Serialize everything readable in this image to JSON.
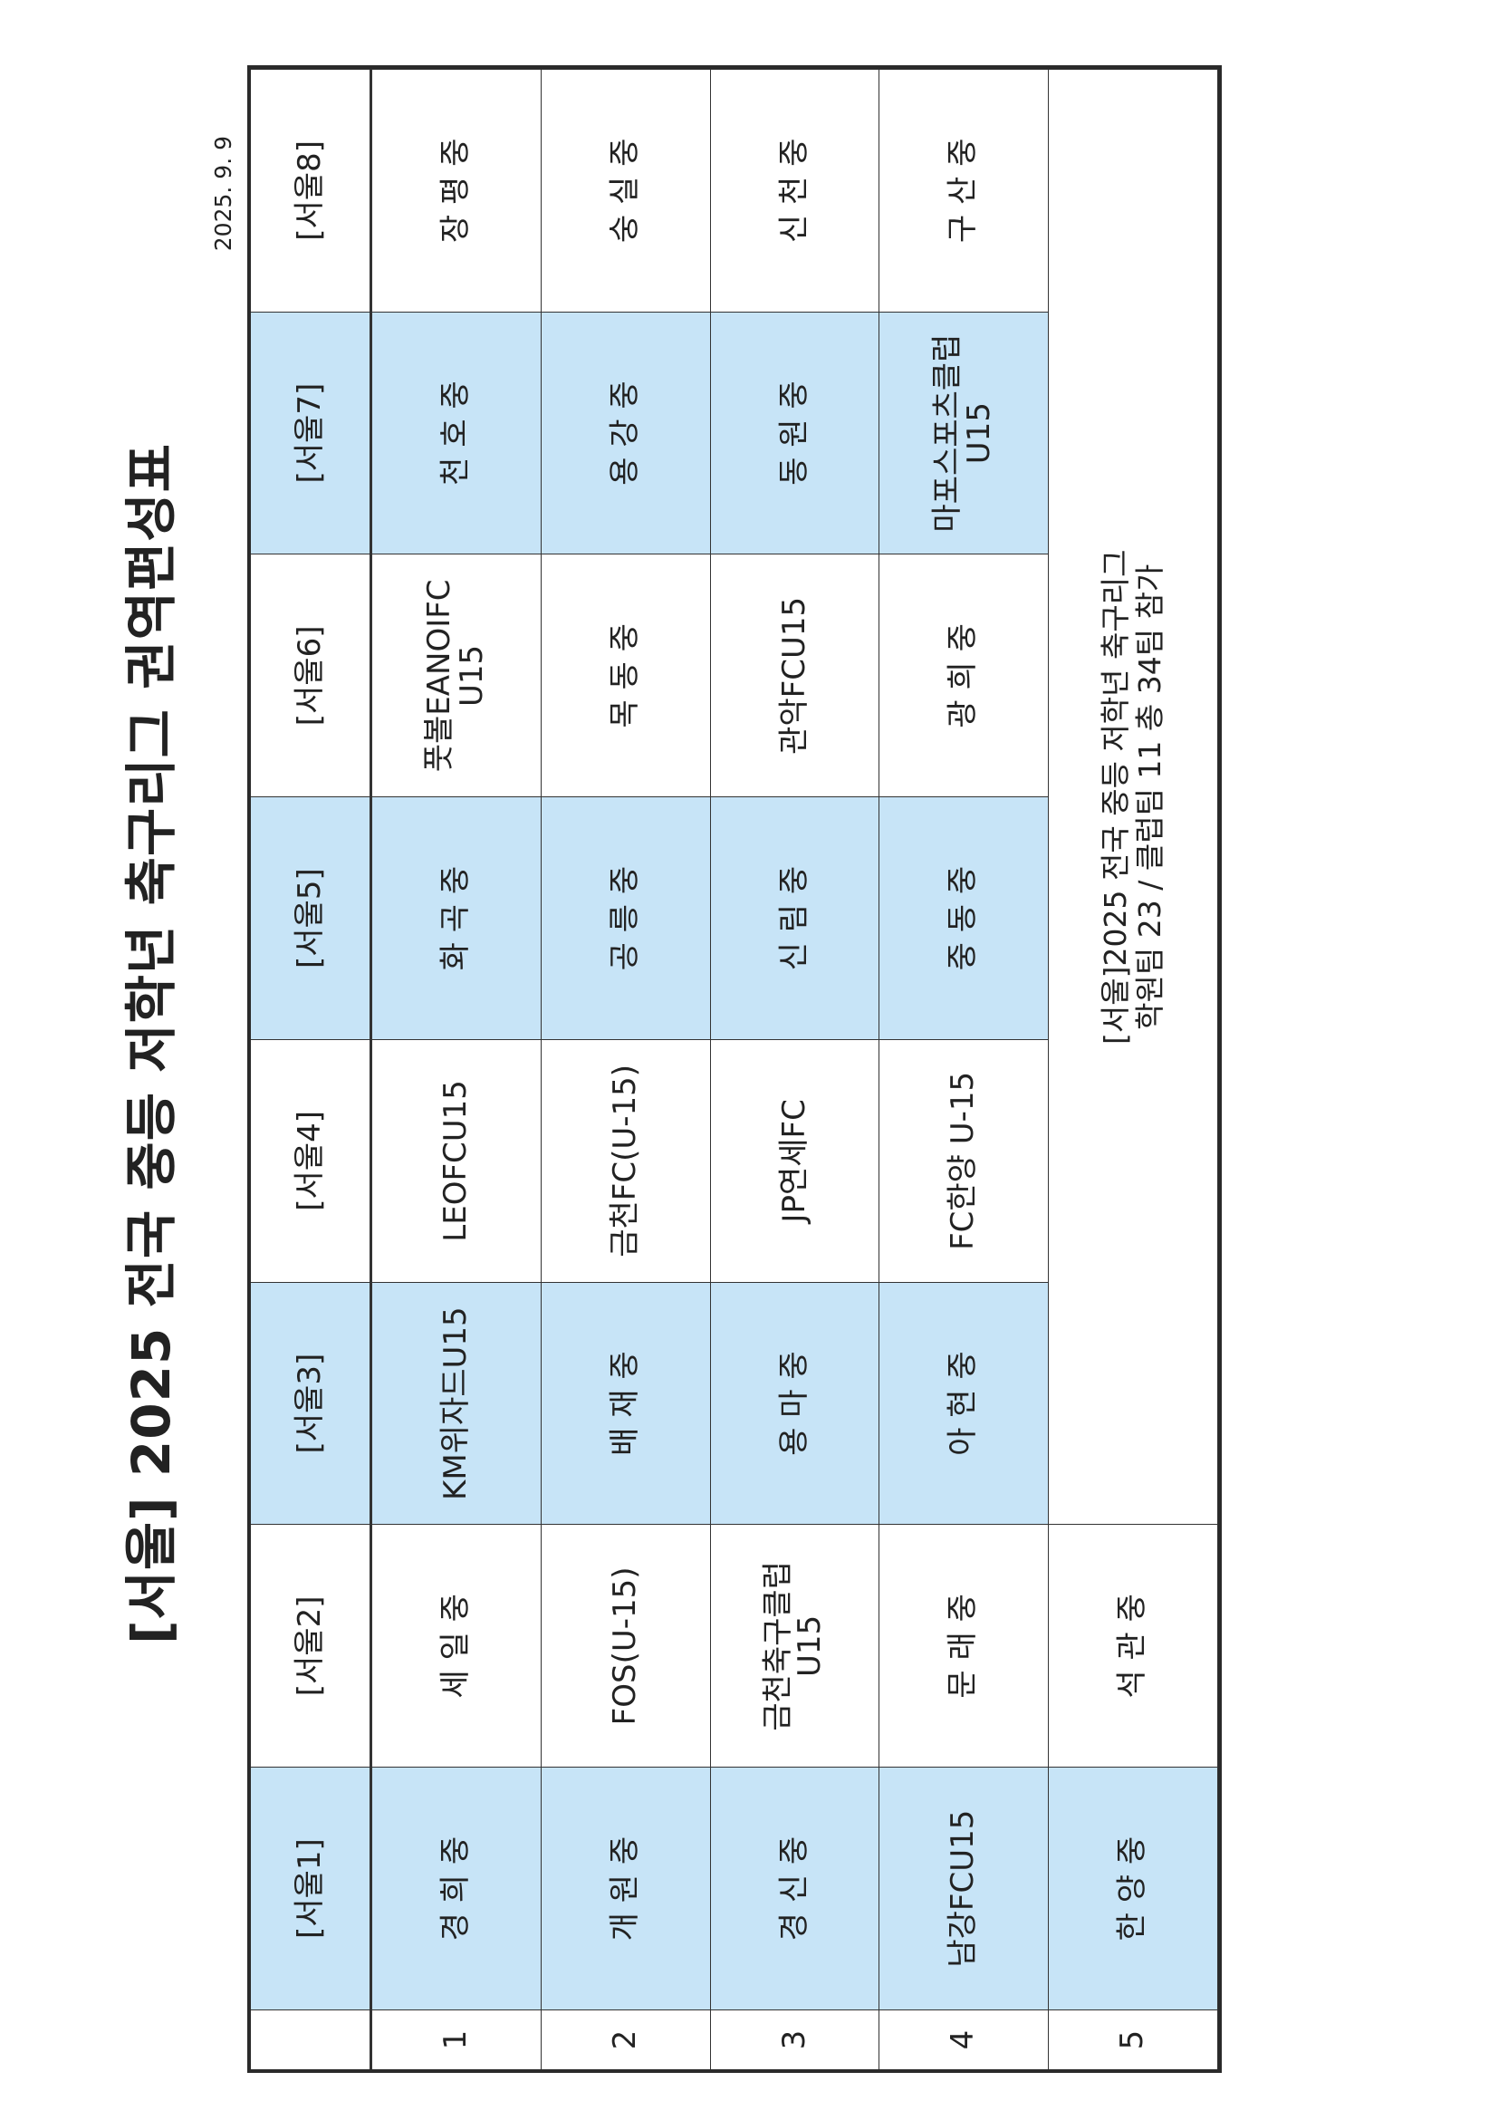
{
  "title": "[서울] 2025 전국 중등 저학년 축구리그 권역편성표",
  "date": "2025. 9. 9",
  "colors": {
    "group_highlight": "#c7e4f7",
    "border": "#333333"
  },
  "row_numbers": [
    "1",
    "2",
    "3",
    "4",
    "5"
  ],
  "groups": [
    {
      "label": "[서울1]",
      "teams": [
        "경 희 중",
        "개 원 중",
        "경 신 중",
        "남강FCU15",
        "한 양 중"
      ]
    },
    {
      "label": "[서울2]",
      "teams": [
        "세 일 중",
        "FOS(U-15)",
        "금천축구클럽\nU15",
        "문 래 중",
        "석 관 중"
      ]
    },
    {
      "label": "[서울3]",
      "teams": [
        "KM위자드U15",
        "배 재 중",
        "용 마 중",
        "아 현 중"
      ]
    },
    {
      "label": "[서울4]",
      "teams": [
        "LEOFCU15",
        "금천FC(U-15)",
        "JP연세FC",
        "FC한양 U-15"
      ]
    },
    {
      "label": "[서울5]",
      "teams": [
        "화 곡 중",
        "공 릉 중",
        "신 림 중",
        "중 동 중"
      ]
    },
    {
      "label": "[서울6]",
      "teams": [
        "풋볼EANOIFC\nU15",
        "목 동 중",
        "관악FCU15",
        "광 희 중"
      ]
    },
    {
      "label": "[서울7]",
      "teams": [
        "천 호 중",
        "용 강 중",
        "동 원 중",
        "마포스포츠클럽\nU15"
      ]
    },
    {
      "label": "[서울8]",
      "teams": [
        "장 평 중",
        "숭 실 중",
        "신 천 중",
        "구 산 중"
      ]
    }
  ],
  "note": {
    "line1": "[서울]2025 전국 중등 저학년 축구리그",
    "line2": "학원팀 23 / 클럽팀 11 총 34팀 참가"
  }
}
